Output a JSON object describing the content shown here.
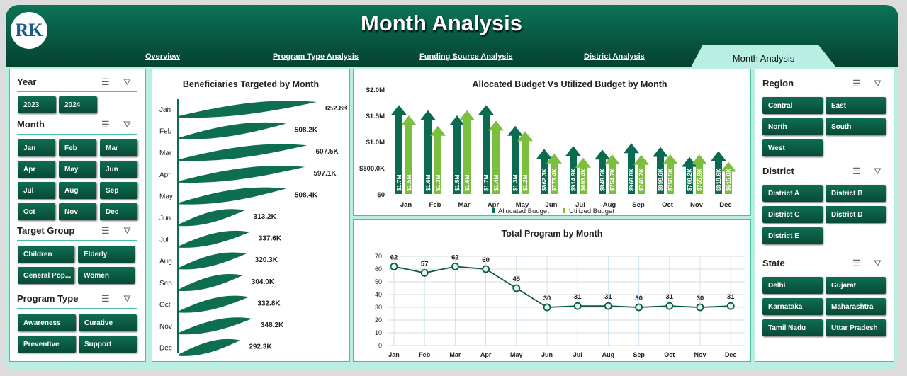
{
  "header": {
    "title": "Month Analysis",
    "logo_text": "RK"
  },
  "nav": [
    {
      "label": "Overview"
    },
    {
      "label": "Program Type Analysis"
    },
    {
      "label": "Funding Source Analysis"
    },
    {
      "label": "District Analysis"
    },
    {
      "label": "Month Analysis",
      "active": true
    }
  ],
  "colors": {
    "dark_green": "#0b6b50",
    "light_green": "#7cbf3f",
    "bg": "#b9efe2"
  },
  "left_slicers": [
    {
      "title": "Year",
      "items": [
        "2023",
        "2024"
      ]
    },
    {
      "title": "Month",
      "items": [
        "Jan",
        "Feb",
        "Mar",
        "Apr",
        "May",
        "Jun",
        "Jul",
        "Aug",
        "Sep",
        "Oct",
        "Nov",
        "Dec"
      ]
    },
    {
      "title": "Target Group",
      "items": [
        "Children",
        "Elderly",
        "General Pop...",
        "Women"
      ]
    },
    {
      "title": "Program Type",
      "items": [
        "Awareness",
        "Curative",
        "Preventive",
        "Support"
      ]
    }
  ],
  "right_slicers": [
    {
      "title": "Region",
      "items": [
        "Central",
        "East",
        "North",
        "South",
        "West"
      ]
    },
    {
      "title": "District",
      "items": [
        "District A",
        "District B",
        "District C",
        "District D",
        "District E"
      ]
    },
    {
      "title": "State",
      "items": [
        "Delhi",
        "Gujarat",
        "Karnataka",
        "Maharashtra",
        "Tamil Nadu",
        "Uttar Pradesh"
      ]
    }
  ],
  "chart_data": [
    {
      "type": "bar",
      "orientation": "horizontal",
      "title": "Beneficiaries Targeted by Month",
      "categories": [
        "Jan",
        "Feb",
        "Mar",
        "Apr",
        "May",
        "Jun",
        "Jul",
        "Aug",
        "Sep",
        "Oct",
        "Nov",
        "Dec"
      ],
      "values": [
        652.8,
        508.2,
        607.5,
        597.1,
        508.4,
        313.2,
        337.6,
        320.3,
        304.0,
        332.8,
        348.2,
        292.3
      ],
      "labels": [
        "652.8K",
        "508.2K",
        "607.5K",
        "597.1K",
        "508.4K",
        "313.2K",
        "337.6K",
        "320.3K",
        "304.0K",
        "332.8K",
        "348.2K",
        "292.3K"
      ]
    },
    {
      "type": "bar",
      "title": "Allocated Budget Vs Utilized Budget by Month",
      "categories": [
        "Jan",
        "Feb",
        "Mar",
        "Apr",
        "May",
        "Jun",
        "Jul",
        "Aug",
        "Sep",
        "Oct",
        "Nov",
        "Dec"
      ],
      "yticks": [
        "$0",
        "$500.0K",
        "$1.0M",
        "$1.5M",
        "$2.0M"
      ],
      "ylim": [
        0,
        2000000
      ],
      "legend": "bottom",
      "series": [
        {
          "name": "Allocated Budget",
          "color": "#0b6b50",
          "values": [
            1700000,
            1600000,
            1500000,
            1700000,
            1300000,
            862300,
            914900,
            848500,
            968800,
            898600,
            708200,
            819600
          ],
          "labels": [
            "$1.7M",
            "$1.6M",
            "$1.5M",
            "$1.7M",
            "$1.3M",
            "$862.3K",
            "$914.9K",
            "$848.5K",
            "$968.8K",
            "$898.6K",
            "$708.2K",
            "$819.6K"
          ]
        },
        {
          "name": "Utilized Budget",
          "color": "#7cbf3f",
          "values": [
            1500000,
            1300000,
            1600000,
            1400000,
            1200000,
            773400,
            693400,
            754700,
            746700,
            756500,
            755900,
            615600
          ],
          "labels": [
            "$1.5M",
            "$1.3M",
            "$1.6M",
            "$1.4M",
            "$1.2M",
            "$773.4K",
            "$693.4K",
            "$754.7K",
            "$746.7K",
            "$756.5K",
            "$755.9K",
            "$615.6K"
          ]
        }
      ]
    },
    {
      "type": "line",
      "title": "Total Program by Month",
      "categories": [
        "Jan",
        "Feb",
        "Mar",
        "Apr",
        "May",
        "Jun",
        "Jul",
        "Aug",
        "Sep",
        "Oct",
        "Nov",
        "Dec"
      ],
      "values": [
        62,
        57,
        62,
        60,
        45,
        30,
        31,
        31,
        30,
        31,
        30,
        31
      ],
      "yticks": [
        "0",
        "10",
        "20",
        "30",
        "40",
        "50",
        "60",
        "70"
      ],
      "ylim": [
        0,
        70
      ],
      "grid": true
    }
  ]
}
